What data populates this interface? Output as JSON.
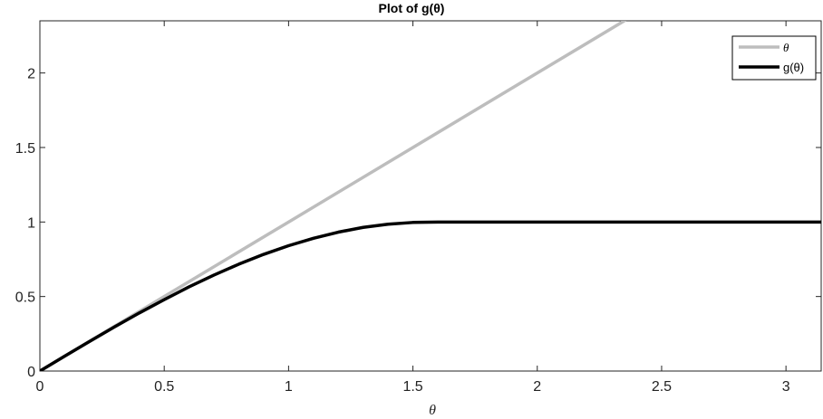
{
  "chart_data": {
    "type": "line",
    "title": "Plot of g(θ)",
    "xlabel": "θ",
    "ylabel": "",
    "xlim": [
      0,
      3.1416
    ],
    "ylim": [
      0,
      2.35
    ],
    "xticks": [
      0,
      0.5,
      1,
      1.5,
      2,
      2.5,
      3
    ],
    "xtick_labels": [
      "0",
      "0.5",
      "1",
      "1.5",
      "2",
      "2.5",
      "3"
    ],
    "yticks": [
      0,
      0.5,
      1,
      1.5,
      2
    ],
    "ytick_labels": [
      "0",
      "0.5",
      "1",
      "1.5",
      "2"
    ],
    "grid": false,
    "legend_position": "top-right",
    "series": [
      {
        "name": "θ",
        "color": "#bdbdbd",
        "x": [
          0,
          0.5,
          1,
          1.5,
          2,
          2.35
        ],
        "y": [
          0,
          0.5,
          1,
          1.5,
          2,
          2.35
        ]
      },
      {
        "name": "g(θ)",
        "color": "#000000",
        "x": [
          0,
          0.1,
          0.2,
          0.3,
          0.4,
          0.5,
          0.6,
          0.7,
          0.8,
          0.9,
          1.0,
          1.1,
          1.2,
          1.3,
          1.4,
          1.5,
          1.6,
          1.7,
          1.8,
          1.9,
          2.0,
          2.1,
          2.2,
          2.3,
          2.4,
          2.5,
          2.6,
          2.7,
          2.8,
          2.9,
          3.0,
          3.1,
          3.1416
        ],
        "y": [
          0,
          0.1,
          0.199,
          0.296,
          0.39,
          0.479,
          0.565,
          0.644,
          0.717,
          0.783,
          0.841,
          0.891,
          0.932,
          0.964,
          0.985,
          0.997,
          1.0,
          1.0,
          1.0,
          1.0,
          1.0,
          1.0,
          1.0,
          1.0,
          1.0,
          1.0,
          1.0,
          1.0,
          1.0,
          1.0,
          1.0,
          1.0,
          1.0
        ]
      }
    ]
  }
}
